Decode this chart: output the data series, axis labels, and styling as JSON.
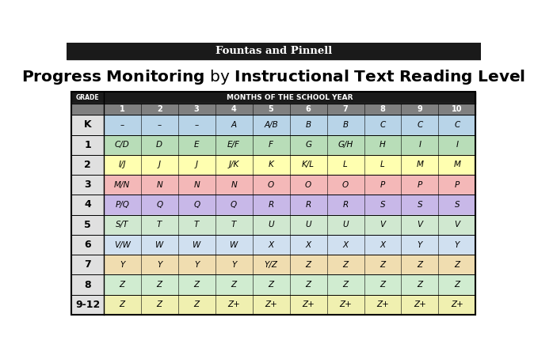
{
  "top_banner_text": "Fountas and Pinnell",
  "title_part1": "Progress Monitoring",
  "title_part2": " by ",
  "title_part3": "Instructional Text Reading Level",
  "grades": [
    "K",
    "1",
    "2",
    "3",
    "4",
    "5",
    "6",
    "7",
    "8",
    "9-12"
  ],
  "table_data": [
    [
      "–",
      "–",
      "–",
      "A",
      "A/B",
      "B",
      "B",
      "C",
      "C",
      "C"
    ],
    [
      "C/D",
      "D",
      "E",
      "E/F",
      "F",
      "G",
      "G/H",
      "H",
      "I",
      "I"
    ],
    [
      "I/J",
      "J",
      "J",
      "J/K",
      "K",
      "K/L",
      "L",
      "L",
      "M",
      "M"
    ],
    [
      "M/N",
      "N",
      "N",
      "N",
      "O",
      "O",
      "O",
      "P",
      "P",
      "P"
    ],
    [
      "P/Q",
      "Q",
      "Q",
      "Q",
      "R",
      "R",
      "R",
      "S",
      "S",
      "S"
    ],
    [
      "S/T",
      "T",
      "T",
      "T",
      "U",
      "U",
      "U",
      "V",
      "V",
      "V"
    ],
    [
      "V/W",
      "W",
      "W",
      "W",
      "X",
      "X",
      "X",
      "X",
      "Y",
      "Y"
    ],
    [
      "Y",
      "Y",
      "Y",
      "Y",
      "Y/Z",
      "Z",
      "Z",
      "Z",
      "Z",
      "Z"
    ],
    [
      "Z",
      "Z",
      "Z",
      "Z",
      "Z",
      "Z",
      "Z",
      "Z",
      "Z",
      "Z"
    ],
    [
      "Z",
      "Z",
      "Z",
      "Z+",
      "Z+",
      "Z+",
      "Z+",
      "Z+",
      "Z+",
      "Z+"
    ]
  ],
  "row_colors": [
    "#b8d4e8",
    "#b8ddb8",
    "#ffffb0",
    "#f4b8b8",
    "#c8b8e8",
    "#d0e8d0",
    "#d0e0f0",
    "#f0ddb0",
    "#d0ecd0",
    "#f0f0b0"
  ],
  "top_banner_bg": "#1a1a1a",
  "top_banner_fg": "#ffffff",
  "header_bg": "#1a1a1a",
  "header_fg": "#ffffff",
  "month_header_bg": "#808080",
  "month_header_fg": "#ffffff",
  "grade_col_bg": "#e0e0e0",
  "grade_col_fg": "#000000",
  "border_color": "#000000",
  "cell_text_color": "#000000",
  "month_numbers": [
    "1",
    "2",
    "3",
    "4",
    "5",
    "6",
    "7",
    "8",
    "9",
    "10"
  ]
}
